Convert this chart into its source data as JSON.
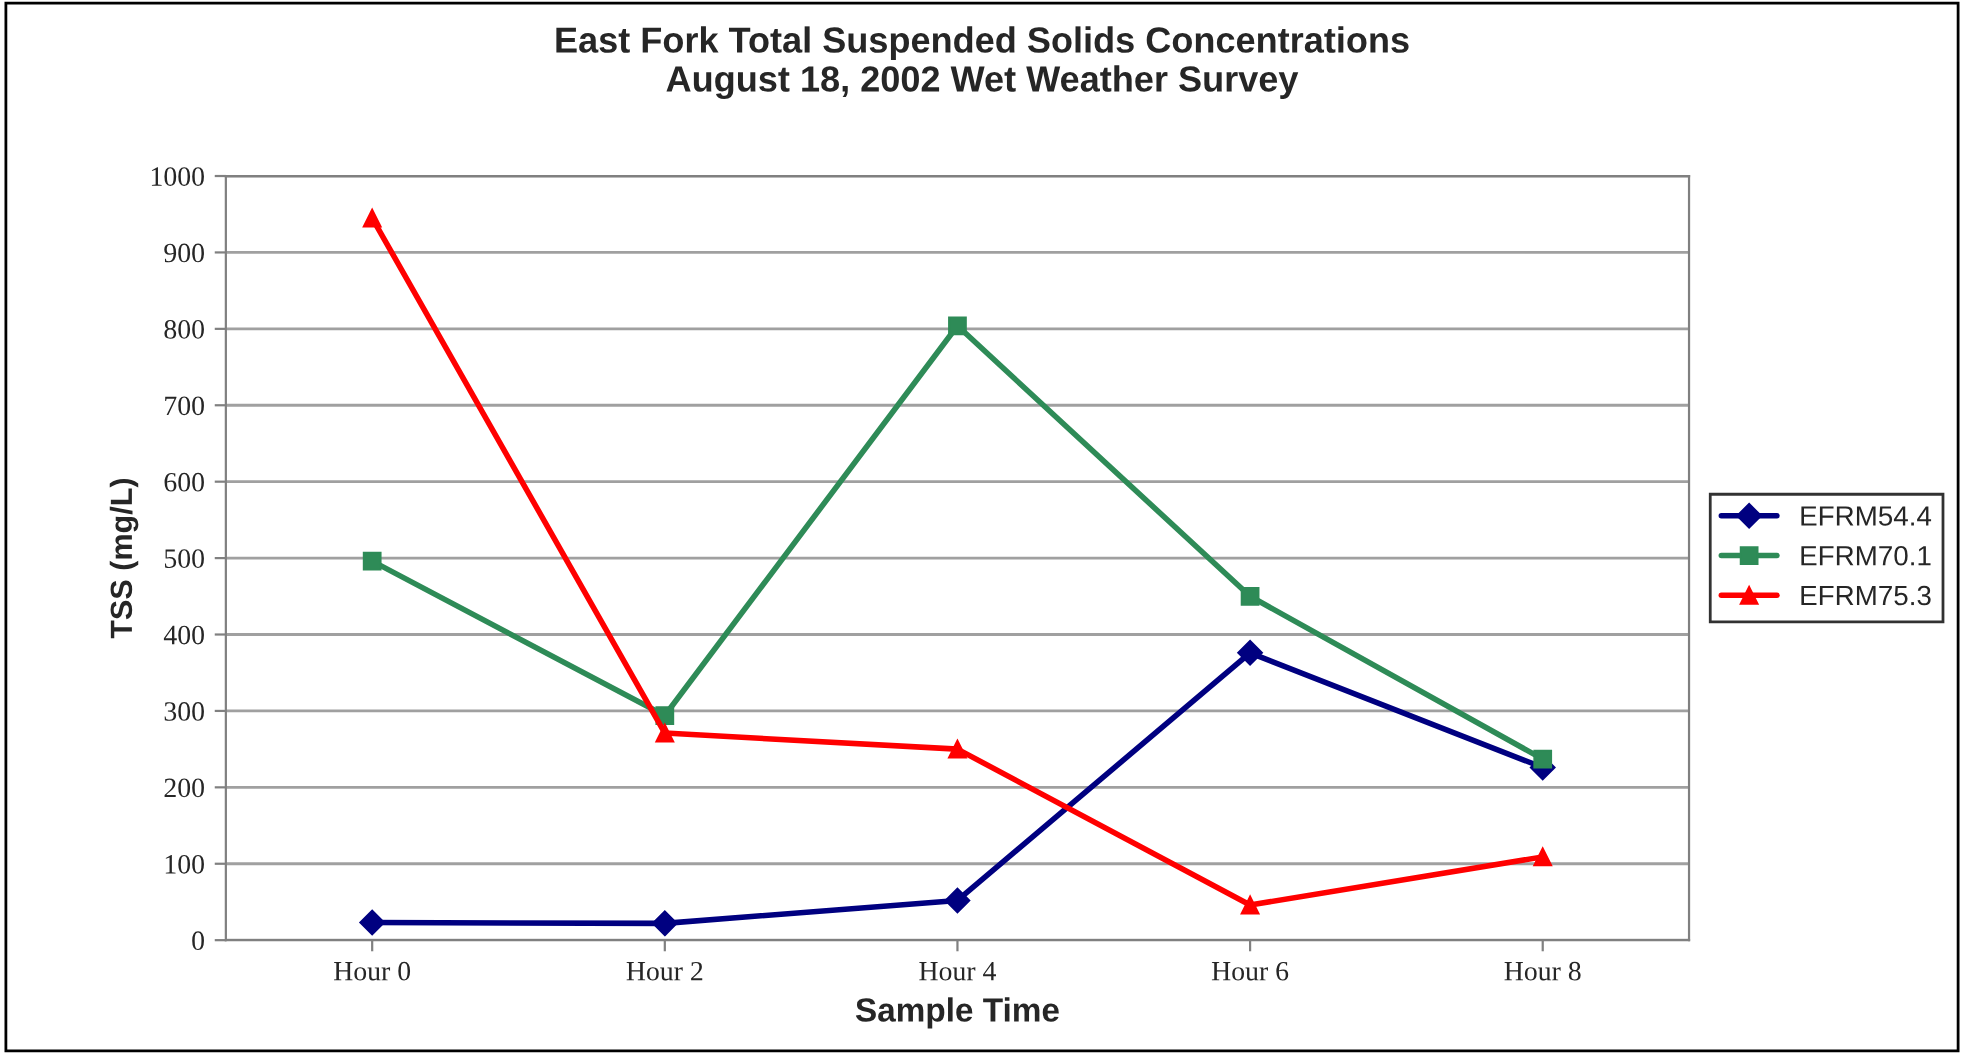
{
  "chart_data": {
    "type": "line",
    "title": "East Fork Total Suspended Solids Concentrations\nAugust 18, 2002 Wet Weather Survey",
    "xlabel": "Sample Time",
    "ylabel": "TSS (mg/L)",
    "categories": [
      "Hour 0",
      "Hour 2",
      "Hour 4",
      "Hour 6",
      "Hour 8"
    ],
    "series": [
      {
        "name": "EFRM54.4",
        "color": "#000080",
        "marker": "diamond",
        "values": [
          23,
          22,
          52,
          376,
          226
        ]
      },
      {
        "name": "EFRM70.1",
        "color": "#2e8b57",
        "marker": "square",
        "values": [
          496,
          294,
          804,
          450,
          237
        ]
      },
      {
        "name": "EFRM75.3",
        "color": "#ff0000",
        "marker": "triangle",
        "values": [
          945,
          271,
          250,
          46,
          109
        ]
      }
    ],
    "ylim": [
      0,
      1000
    ],
    "yticks": [
      0,
      100,
      200,
      300,
      400,
      500,
      600,
      700,
      800,
      900,
      1000
    ],
    "grid": "y",
    "legend": "right"
  }
}
